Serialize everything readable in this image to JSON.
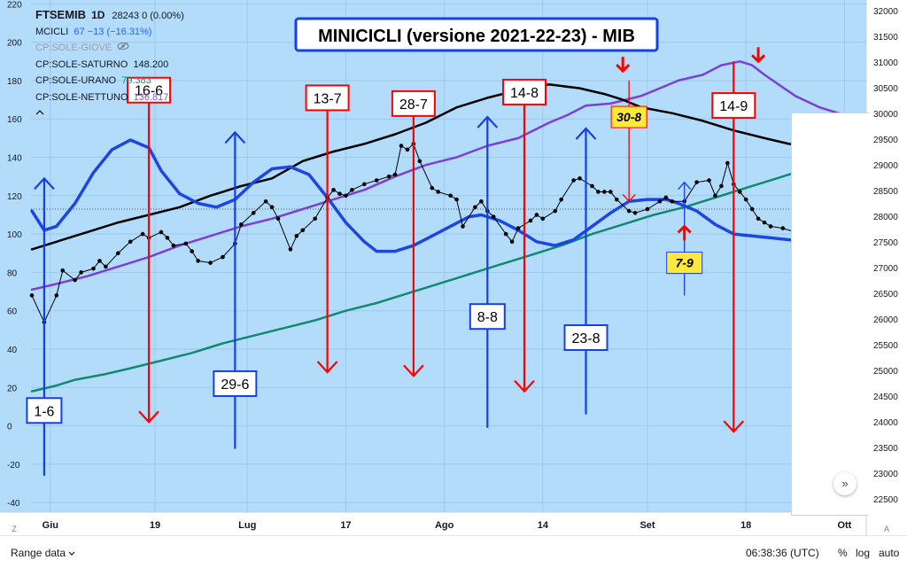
{
  "title": "MINICICLI (versione 2021-22-23) - MIB",
  "legend": {
    "symbol": "FTSEMIB",
    "timeframe": "1D",
    "price": "28243",
    "change": "0 (0.00%)",
    "rows": [
      {
        "label": "MCICLI",
        "value": "67 −13 (−16.31%)",
        "value_color": "#2962ff",
        "muted": false
      },
      {
        "label": "CP:SOLE-GIOVE",
        "value": "",
        "value_color": "",
        "muted": true
      },
      {
        "label": "CP:SOLE-SATURNO",
        "value": "148.200",
        "value_color": "#131722",
        "muted": false
      },
      {
        "label": "CP:SOLE-URANO",
        "value": "79.383",
        "value_color": "#138a7e",
        "muted": false
      },
      {
        "label": "CP:SOLE-NETTUNO",
        "value": "136.817",
        "value_color": "#7e57c2",
        "muted": false
      }
    ]
  },
  "bottom_bar": {
    "range_label": "Range data",
    "time": "06:38:36 (UTC)",
    "percent": "%",
    "log": "log",
    "auto": "auto"
  },
  "corner_left": "Z",
  "corner_right": "A",
  "scroll_icon": "double-chevron-right-icon",
  "colors": {
    "background": "#b3dcfa",
    "mcicli": "#1d46e0",
    "saturno": "#000000",
    "nettuno": "#7b3fd6",
    "urano": "#128a6f",
    "price": "#000000",
    "red": "#ff0000",
    "blue": "#1540e6",
    "yellow": "#ffe83c"
  },
  "chart_data": {
    "type": "line",
    "x_axis": {
      "ticks": [
        "Giu",
        "19",
        "Lug",
        "17",
        "Ago",
        "14",
        "Set",
        "18",
        "Ott"
      ]
    },
    "left_axis": {
      "range": [
        -45,
        222
      ],
      "ticks": [
        -40,
        -20,
        0,
        20,
        40,
        60,
        80,
        100,
        120,
        140,
        160,
        180,
        200,
        220
      ]
    },
    "right_axis": {
      "range": [
        22242,
        32208
      ],
      "ticks": [
        22500,
        23000,
        23500,
        24000,
        24500,
        25000,
        25500,
        26000,
        26500,
        27000,
        27500,
        28000,
        28500,
        29000,
        29500,
        30000,
        30500,
        31000,
        31500,
        32000
      ]
    },
    "series": [
      {
        "name": "MCICLI",
        "axis": "left",
        "color": "#1d46e0",
        "x": [
          1,
          3,
          5,
          8,
          11,
          14,
          17,
          20,
          22,
          25,
          28,
          31,
          34,
          37,
          40,
          43,
          46,
          49,
          52,
          55,
          57,
          60,
          63,
          66,
          69,
          72,
          74,
          77,
          80,
          83,
          86,
          89,
          92,
          95,
          98,
          101,
          104,
          106,
          109,
          112,
          115,
          118,
          121,
          124,
          127
        ],
        "y": [
          112,
          102,
          104,
          116,
          132,
          144,
          149,
          145,
          133,
          121,
          116,
          114,
          118,
          127,
          134,
          135,
          131,
          119,
          106,
          96,
          91,
          91,
          94,
          99,
          104,
          109,
          110,
          107,
          102,
          96,
          94,
          97,
          104,
          111,
          117,
          118,
          118,
          116,
          112,
          105,
          100,
          99,
          98,
          97,
          96
        ]
      },
      {
        "name": "CP:SOLE-SATURNO",
        "axis": "left",
        "color": "#000000",
        "x": [
          1,
          5,
          6,
          10,
          15,
          20,
          25,
          30,
          35,
          40,
          45,
          50,
          55,
          60,
          65,
          70,
          75,
          80,
          85,
          90,
          94,
          97,
          100,
          105,
          110,
          115,
          120,
          124,
          127
        ],
        "y": [
          92,
          96,
          97,
          101,
          106,
          110,
          114,
          120,
          125,
          129,
          138,
          143,
          147,
          152,
          158,
          166,
          171,
          175,
          178,
          176,
          173,
          170,
          166,
          163,
          159,
          154,
          150,
          147,
          146
        ]
      },
      {
        "name": "CP:SOLE-NETTUNO",
        "axis": "left",
        "color": "#7b3fd6",
        "x": [
          1,
          5,
          10,
          15,
          20,
          25,
          30,
          35,
          40,
          45,
          50,
          55,
          60,
          65,
          70,
          75,
          80,
          85,
          88,
          91,
          95,
          100,
          103,
          106,
          110,
          113,
          116,
          118,
          120,
          125,
          129,
          133
        ],
        "y": [
          71,
          74,
          78,
          83,
          88,
          94,
          99,
          104,
          108,
          113,
          118,
          123,
          130,
          136,
          140,
          146,
          150,
          158,
          162,
          167,
          168,
          172,
          176,
          180,
          183,
          188,
          190,
          188,
          183,
          172,
          166,
          162
        ]
      },
      {
        "name": "CP:SOLE-URANO",
        "axis": "left",
        "color": "#128a6f",
        "x": [
          1,
          5,
          8,
          13,
          17,
          22,
          27,
          32,
          37,
          42,
          47,
          52,
          57,
          62,
          67,
          72,
          77,
          82,
          87,
          92,
          97,
          102,
          107,
          112,
          117,
          122,
          125,
          127
        ],
        "y": [
          18,
          21,
          24,
          27,
          30,
          34,
          38,
          43,
          47,
          51,
          55,
          60,
          64,
          69,
          74,
          79,
          84,
          89,
          94,
          100,
          105,
          110,
          114,
          119,
          124,
          129,
          132,
          132
        ]
      },
      {
        "name": "FTSEMIB",
        "axis": "left",
        "color": "#000000",
        "markers": true,
        "x": [
          1,
          3,
          5,
          6,
          8,
          9,
          11,
          12,
          13,
          15,
          17,
          19,
          20,
          22,
          23,
          24,
          26,
          27,
          28,
          30,
          32,
          34,
          35,
          37,
          39,
          40,
          41,
          43,
          44,
          45,
          47,
          49,
          50,
          51,
          52,
          53,
          55,
          57,
          59,
          60,
          61,
          62,
          63,
          64,
          66,
          67,
          69,
          70,
          71,
          73,
          74,
          75,
          76,
          78,
          79,
          80,
          82,
          83,
          84,
          86,
          87,
          89,
          90,
          92,
          93,
          94,
          95,
          96,
          98,
          99,
          101,
          103,
          104,
          105,
          107,
          109,
          111,
          112,
          113,
          114,
          115,
          116,
          117,
          118,
          119,
          120,
          121,
          123,
          125,
          126
        ],
        "y": [
          68,
          54,
          68,
          81,
          76,
          80,
          82,
          86,
          83,
          90,
          96,
          100,
          98,
          101,
          98,
          94,
          95,
          91,
          86,
          85,
          88,
          95,
          105,
          111,
          117,
          114,
          108,
          92,
          99,
          102,
          108,
          119,
          123,
          121,
          120,
          123,
          126,
          128,
          130,
          131,
          146,
          144,
          147,
          138,
          124,
          122,
          120,
          118,
          104,
          114,
          117,
          112,
          109,
          100,
          96,
          103,
          107,
          110,
          108,
          112,
          118,
          128,
          129,
          125,
          122,
          122,
          122,
          118,
          112,
          111,
          113,
          117,
          119,
          117,
          117,
          127,
          128,
          120,
          125,
          137,
          126,
          122,
          118,
          113,
          108,
          106,
          104,
          103,
          101,
          98
        ]
      }
    ],
    "price_level_line": 113,
    "vertical_arrows": [
      {
        "label": "1-6",
        "color": "blue",
        "direction": "up",
        "x": 3,
        "y_top": 129,
        "y_bottom": -26,
        "label_y": 8
      },
      {
        "label": "16-6",
        "color": "red",
        "direction": "down",
        "x": 20,
        "y_top": 178,
        "y_bottom": 2,
        "label_y": 175
      },
      {
        "label": "29-6",
        "color": "blue",
        "direction": "up",
        "x": 34,
        "y_top": 153,
        "y_bottom": -12,
        "label_y": 22
      },
      {
        "label": "13-7",
        "color": "red",
        "direction": "down",
        "x": 49,
        "y_top": 173,
        "y_bottom": 28,
        "label_y": 171
      },
      {
        "label": "28-7",
        "color": "red",
        "direction": "down",
        "x": 63,
        "y_top": 171,
        "y_bottom": 26,
        "label_y": 168
      },
      {
        "label": "8-8",
        "color": "blue",
        "direction": "up",
        "x": 75,
        "y_top": 161,
        "y_bottom": -1,
        "label_y": 57
      },
      {
        "label": "14-8",
        "color": "red",
        "direction": "down",
        "x": 81,
        "y_top": 177,
        "y_bottom": 18,
        "label_y": 174
      },
      {
        "label": "23-8",
        "color": "blue",
        "direction": "up",
        "x": 91,
        "y_top": 155,
        "y_bottom": 6,
        "label_y": 46
      },
      {
        "label": "14-9",
        "color": "red",
        "direction": "down",
        "x": 115,
        "y_top": 190,
        "y_bottom": -3,
        "label_y": 167
      }
    ],
    "small_markers": [
      {
        "label": "30-8",
        "kind": "thin-red-down",
        "x": 98,
        "y_top": 180,
        "y_bottom": 117,
        "label_y": 161
      },
      {
        "label": "7-9",
        "kind": "thin-blue-up",
        "x": 107,
        "y_top": 127,
        "y_bottom": 68,
        "label_y": 85
      }
    ],
    "bold_red_arrows": [
      {
        "direction": "down",
        "x": 97,
        "y": 185
      },
      {
        "direction": "down",
        "x": 119,
        "y": 190
      },
      {
        "direction": "up",
        "x": 107,
        "y": 104
      }
    ]
  }
}
